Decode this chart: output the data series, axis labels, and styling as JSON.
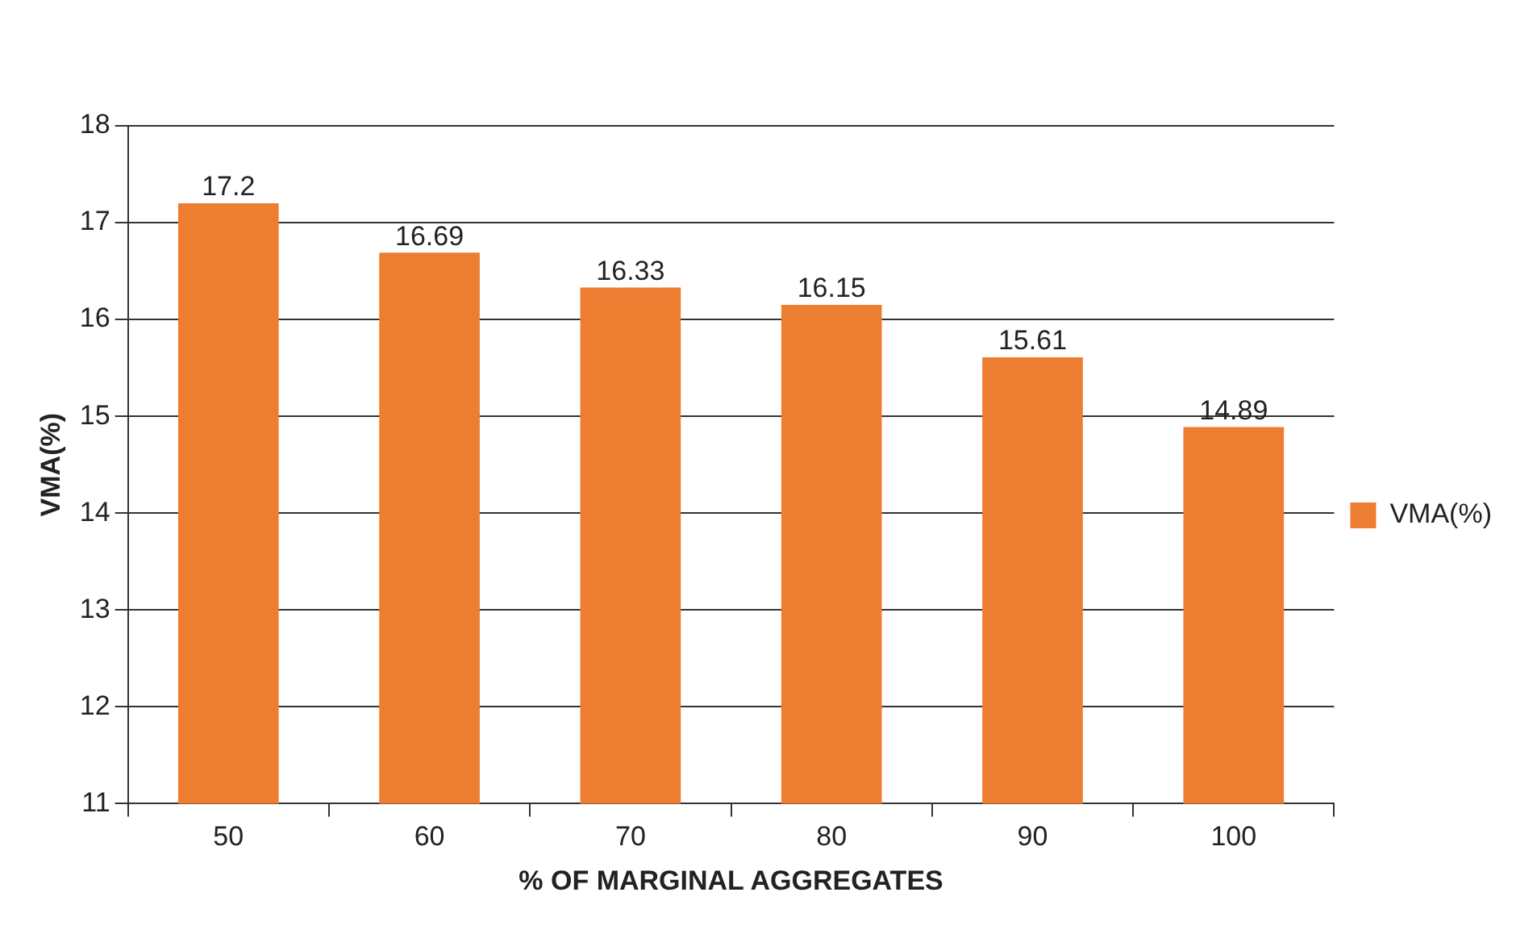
{
  "chart_data": {
    "type": "bar",
    "xlabel": "% OF MARGINAL AGGREGATES",
    "ylabel": "VMA(%)",
    "categories": [
      "50",
      "60",
      "70",
      "80",
      "90",
      "100"
    ],
    "series": [
      {
        "name": "VMA(%)",
        "color": "#ed7d31",
        "values": [
          17.2,
          16.69,
          16.33,
          16.15,
          15.61,
          14.89
        ]
      }
    ],
    "ylim": [
      11,
      18
    ],
    "yticks": [
      11,
      12,
      13,
      14,
      15,
      16,
      17,
      18
    ],
    "grid": "y",
    "legend": "right",
    "data_labels": true
  }
}
